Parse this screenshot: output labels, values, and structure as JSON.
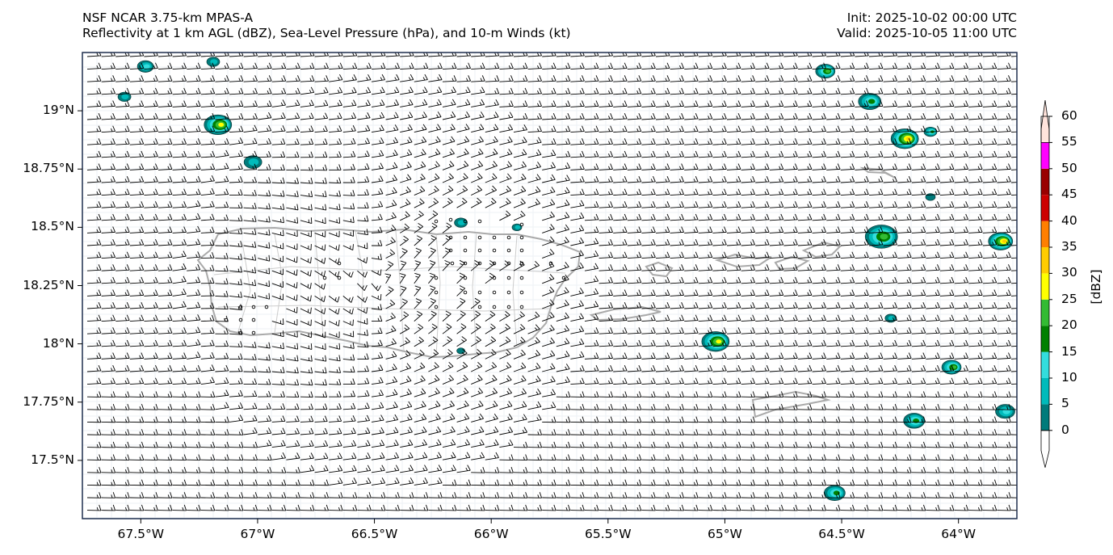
{
  "title": {
    "left_line1": "NSF NCAR 3.75-km MPAS-A",
    "left_line2": "Reflectivity at 1 km AGL (dBZ), Sea-Level Pressure (hPa), and 10-m Winds (kt)",
    "init": "Init: 2025-10-02 00:00 UTC",
    "valid": "Valid: 2025-10-05 11:00 UTC"
  },
  "map": {
    "lon_range": [
      -67.75,
      -63.75
    ],
    "lat_range": [
      17.25,
      19.25
    ],
    "x_ticks": [
      "67.5°W",
      "67°W",
      "66.5°W",
      "66°W",
      "65.5°W",
      "65°W",
      "64.5°W",
      "64°W"
    ],
    "x_tick_values": [
      -67.5,
      -67.0,
      -66.5,
      -66.0,
      -65.5,
      -65.0,
      -64.5,
      -64.0
    ],
    "y_ticks": [
      "19°N",
      "18.75°N",
      "18.5°N",
      "18.25°N",
      "18°N",
      "17.75°N",
      "17.5°N"
    ],
    "y_tick_values": [
      19.0,
      18.75,
      18.5,
      18.25,
      18.0,
      17.75,
      17.5
    ],
    "wind_direction": "easterly",
    "coast_color": "#aaaaaa"
  },
  "colorbar": {
    "label": "[dBZ]",
    "ticks": [
      "0",
      "5",
      "10",
      "15",
      "20",
      "25",
      "30",
      "35",
      "40",
      "45",
      "50",
      "55",
      "60"
    ],
    "colors": [
      "#007b7b",
      "#00bbbb",
      "#33dddd",
      "#008000",
      "#33bb33",
      "#ffff00",
      "#ffcc00",
      "#ff7f00",
      "#cc0000",
      "#990000",
      "#ff00ff",
      "#ffe4dc"
    ]
  }
}
